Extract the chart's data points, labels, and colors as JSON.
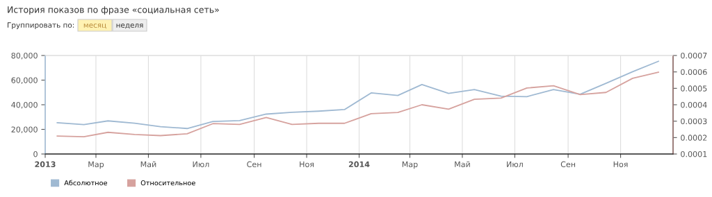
{
  "chart_data": {
    "type": "line",
    "title": "История показов по фразе «социальная сеть»",
    "annotations": [
      "Группировать по:",
      "месяц",
      "неделя"
    ],
    "x": [
      "2013-01-15",
      "2013-02-15",
      "2013-03-15",
      "2013-04-15",
      "2013-05-15",
      "2013-06-15",
      "2013-07-15",
      "2013-08-15",
      "2013-09-15",
      "2013-10-15",
      "2013-11-15",
      "2013-12-15",
      "2014-01-15",
      "2014-02-15",
      "2014-03-15",
      "2014-04-15",
      "2014-05-15",
      "2014-06-15",
      "2014-07-15",
      "2014-08-15",
      "2014-09-15",
      "2014-10-15",
      "2014-11-15",
      "2014-12-15"
    ],
    "series": [
      {
        "name": "Абсолютное",
        "color": "#9fb9d2",
        "values": [
          25400,
          23900,
          26900,
          25000,
          22200,
          20700,
          26400,
          27100,
          32400,
          33900,
          34800,
          36100,
          49600,
          47500,
          56400,
          49200,
          52300,
          47000,
          46600,
          52300,
          48500,
          57400,
          66800,
          75300
        ]
      },
      {
        "name": "Относительное",
        "color": "#d6a29e",
        "axis": "y2",
        "values": [
          0.000209,
          0.000205,
          0.000232,
          0.000219,
          0.000212,
          0.000223,
          0.000285,
          0.00028,
          0.000322,
          0.00028,
          0.000287,
          0.000287,
          0.000346,
          0.000353,
          0.0004,
          0.000373,
          0.000433,
          0.000441,
          0.000502,
          0.000516,
          0.000462,
          0.000475,
          0.000561,
          0.000598
        ]
      }
    ],
    "xlim": [
      "2013-01-01",
      "2015-01-01"
    ],
    "xticks": [
      {
        "value": "2013-01-01",
        "label": "2013"
      },
      {
        "value": "2013-03-01",
        "label": "Мар"
      },
      {
        "value": "2013-05-01",
        "label": "Май"
      },
      {
        "value": "2013-07-01",
        "label": "Июл"
      },
      {
        "value": "2013-09-01",
        "label": "Сен"
      },
      {
        "value": "2013-11-01",
        "label": "Ноя"
      },
      {
        "value": "2014-01-01",
        "label": "2014"
      },
      {
        "value": "2014-03-01",
        "label": "Мар"
      },
      {
        "value": "2014-05-01",
        "label": "Май"
      },
      {
        "value": "2014-07-01",
        "label": "Июл"
      },
      {
        "value": "2014-09-01",
        "label": "Сен"
      },
      {
        "value": "2014-11-01",
        "label": "Ноя"
      }
    ],
    "ylim": [
      0,
      80000
    ],
    "yticks": [
      {
        "value": 0,
        "label": "0"
      },
      {
        "value": 20000,
        "label": "20,000"
      },
      {
        "value": 40000,
        "label": "40,000"
      },
      {
        "value": 60000,
        "label": "60,000"
      },
      {
        "value": 80000,
        "label": "80,000"
      }
    ],
    "y2lim": [
      0.0001,
      0.0007
    ],
    "y2ticks": [
      {
        "value": 0.0001,
        "label": "0.0001"
      },
      {
        "value": 0.0002,
        "label": "0.0002"
      },
      {
        "value": 0.0003,
        "label": "0.0003"
      },
      {
        "value": 0.0004,
        "label": "0.0004"
      },
      {
        "value": 0.0005,
        "label": "0.0005"
      },
      {
        "value": 0.0006,
        "label": "0.0006"
      },
      {
        "value": 0.0007,
        "label": "0.0007"
      }
    ],
    "grid": "x",
    "legend": "bottom left",
    "marker": "none",
    "line_style": "solid"
  }
}
